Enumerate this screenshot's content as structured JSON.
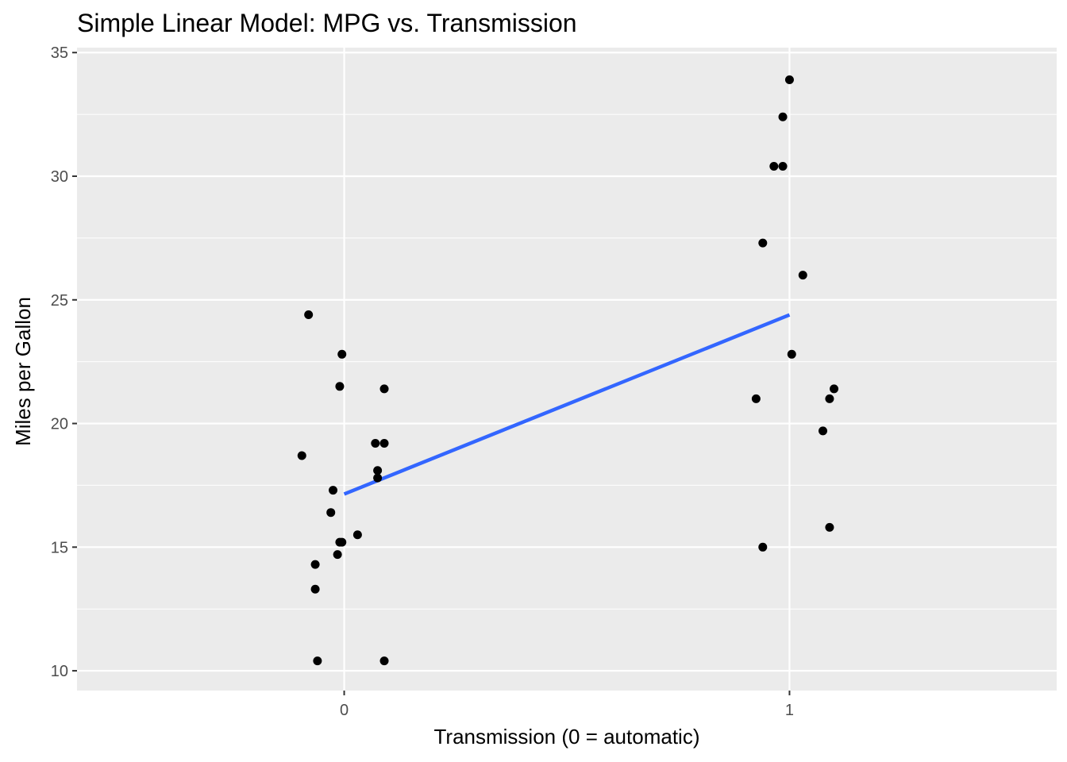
{
  "chart_data": {
    "type": "scatter",
    "title": "Simple Linear Model: MPG vs. Transmission",
    "xlabel": "Transmission (0 = automatic)",
    "ylabel": "Miles per Gallon",
    "xlim": [
      -0.6,
      1.6
    ],
    "ylim": [
      9.2,
      35.2
    ],
    "x_ticks": [
      0,
      1
    ],
    "x_tick_labels": [
      "0",
      "1"
    ],
    "y_ticks": [
      10,
      15,
      20,
      25,
      30,
      35
    ],
    "y_tick_labels": [
      "10",
      "15",
      "20",
      "25",
      "30",
      "35"
    ],
    "grid": true,
    "legend": "none",
    "points": [
      {
        "x": -0.08,
        "y": 24.4
      },
      {
        "x": -0.005,
        "y": 22.8
      },
      {
        "x": -0.01,
        "y": 21.5
      },
      {
        "x": 0.09,
        "y": 21.4
      },
      {
        "x": 0.07,
        "y": 19.2
      },
      {
        "x": 0.09,
        "y": 19.2
      },
      {
        "x": -0.095,
        "y": 18.7
      },
      {
        "x": 0.075,
        "y": 18.1
      },
      {
        "x": 0.075,
        "y": 17.8
      },
      {
        "x": -0.025,
        "y": 17.3
      },
      {
        "x": -0.03,
        "y": 16.4
      },
      {
        "x": 0.03,
        "y": 15.5
      },
      {
        "x": -0.005,
        "y": 15.2
      },
      {
        "x": -0.01,
        "y": 15.2
      },
      {
        "x": -0.015,
        "y": 14.7
      },
      {
        "x": -0.065,
        "y": 14.3
      },
      {
        "x": -0.065,
        "y": 13.3
      },
      {
        "x": -0.06,
        "y": 10.4
      },
      {
        "x": 0.09,
        "y": 10.4
      },
      {
        "x": 1.0,
        "y": 33.9
      },
      {
        "x": 0.985,
        "y": 32.4
      },
      {
        "x": 0.965,
        "y": 30.4
      },
      {
        "x": 0.985,
        "y": 30.4
      },
      {
        "x": 0.94,
        "y": 27.3
      },
      {
        "x": 1.03,
        "y": 26.0
      },
      {
        "x": 1.005,
        "y": 22.8
      },
      {
        "x": 1.1,
        "y": 21.4
      },
      {
        "x": 1.09,
        "y": 21.0
      },
      {
        "x": 0.925,
        "y": 21.0
      },
      {
        "x": 1.075,
        "y": 19.7
      },
      {
        "x": 1.09,
        "y": 15.8
      },
      {
        "x": 0.94,
        "y": 15.0
      }
    ],
    "fit_line": {
      "x": [
        0,
        1
      ],
      "y": [
        17.147,
        24.392
      ]
    },
    "colors": {
      "panel": "#ebebeb",
      "grid_major": "#ffffff",
      "point": "#000000",
      "fit_line": "#3366ff",
      "tick_label": "#4d4d4d",
      "tick_mark": "#333333"
    }
  }
}
